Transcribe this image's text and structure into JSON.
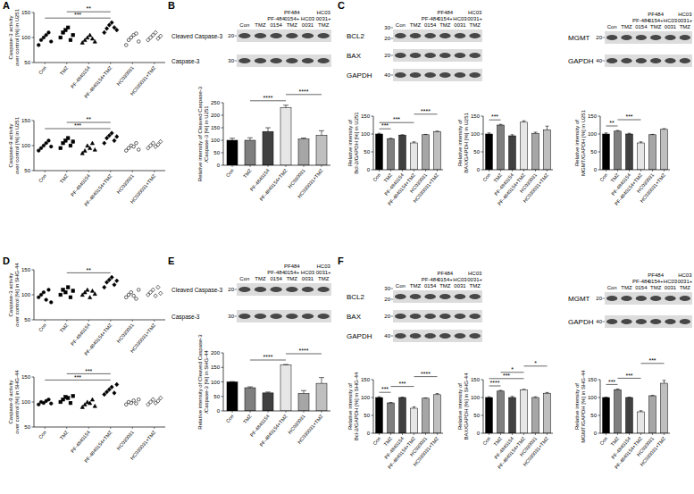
{
  "chart_data": [
    {
      "type": "scatter",
      "y_label": [
        "Caspase-3 activity",
        "over control [%] in U251"
      ],
      "categories": [
        "Con",
        "TMZ",
        "PF-4840154",
        "PF-4840154+TMZ",
        "HC030031",
        "HC030031+TMZ"
      ],
      "values": [
        [
          85,
          95,
          100,
          105,
          110,
          92
        ],
        [
          100,
          110,
          115,
          120,
          95,
          105
        ],
        [
          90,
          95,
          100,
          105,
          98,
          92
        ],
        [
          110,
          118,
          125,
          130,
          120,
          115
        ],
        [
          85,
          95,
          100,
          105,
          108,
          92
        ],
        [
          95,
          100,
          105,
          110,
          98,
          103
        ]
      ],
      "ylim": [
        50,
        150
      ],
      "yticks": [
        50,
        100,
        150
      ],
      "comparisons": [
        {
          "from": 0,
          "to": 3,
          "label": "***"
        },
        {
          "from": 1,
          "to": 3,
          "label": "**"
        }
      ]
    },
    {
      "type": "scatter",
      "y_label": [
        "Caspase-9 activity",
        "over control [%] in U251"
      ],
      "categories": [
        "Con",
        "TMZ",
        "PF-4840154",
        "PF-4840154+TMZ",
        "HC030031",
        "HC030031+TMZ"
      ],
      "values": [
        [
          90,
          95,
          100,
          105,
          110,
          98
        ],
        [
          95,
          105,
          110,
          115,
          100,
          108
        ],
        [
          85,
          90,
          100,
          95,
          105,
          92
        ],
        [
          105,
          115,
          120,
          125,
          110,
          118
        ],
        [
          90,
          95,
          100,
          98,
          105,
          92
        ],
        [
          95,
          100,
          105,
          98,
          102,
          108
        ]
      ],
      "ylim": [
        50,
        150
      ],
      "yticks": [
        50,
        100,
        150
      ],
      "comparisons": [
        {
          "from": 0,
          "to": 3,
          "label": "***"
        },
        {
          "from": 1,
          "to": 3,
          "label": "**"
        }
      ]
    },
    {
      "type": "bar",
      "y_label": [
        "Relative intensity of Cleaved Caspase-3",
        "/Caspase-3 [%] in U251"
      ],
      "categories": [
        "Con",
        "TMZ",
        "PF-4840154",
        "PF-4840154+TMZ",
        "HC030031",
        "HC030031+TMZ"
      ],
      "values": [
        100,
        100,
        135,
        230,
        105,
        120
      ],
      "errors": [
        8,
        10,
        15,
        10,
        4,
        18
      ],
      "colors": [
        "#000000",
        "#7f7f7f",
        "#404040",
        "#e6e6e6",
        "#a6a6a6",
        "#bfbfbf"
      ],
      "ylim": [
        0,
        250
      ],
      "yticks": [
        0,
        50,
        100,
        150,
        200,
        250
      ],
      "comparisons": [
        {
          "from": 1,
          "to": 3,
          "label": "****"
        },
        {
          "from": 3,
          "to": 5,
          "label": "****"
        }
      ]
    },
    {
      "type": "bar",
      "y_label": [
        "Relative intensity of",
        "Bcl-2/GAPDH [%] in U251"
      ],
      "categories": [
        "Con",
        "TMZ",
        "PF-4840154",
        "PF-4840154+TMZ",
        "HC030031",
        "HC030031+TMZ"
      ],
      "values": [
        100,
        87,
        97,
        75,
        98,
        107
      ],
      "errors": [
        2,
        1,
        1,
        3,
        1,
        1
      ],
      "colors": [
        "#000000",
        "#7f7f7f",
        "#404040",
        "#e6e6e6",
        "#a6a6a6",
        "#bfbfbf"
      ],
      "ylim": [
        0,
        150
      ],
      "yticks": [
        0,
        50,
        100,
        150
      ],
      "comparisons": [
        {
          "from": 0,
          "to": 1,
          "label": "***"
        },
        {
          "from": 0,
          "to": 3,
          "label": "***"
        },
        {
          "from": 3,
          "to": 5,
          "label": "****"
        }
      ]
    },
    {
      "type": "bar",
      "y_label": [
        "Relative intensity of",
        "BAX/GAPDH [%] in U251"
      ],
      "categories": [
        "Con",
        "TMZ",
        "PF-4840154",
        "PF-4840154+TMZ",
        "HC030031",
        "HC030031+TMZ"
      ],
      "values": [
        100,
        125,
        95,
        133,
        102,
        112
      ],
      "errors": [
        3,
        2,
        3,
        4,
        3,
        10
      ],
      "colors": [
        "#000000",
        "#7f7f7f",
        "#404040",
        "#e6e6e6",
        "#a6a6a6",
        "#bfbfbf"
      ],
      "ylim": [
        0,
        150
      ],
      "yticks": [
        0,
        50,
        100,
        150
      ],
      "comparisons": [
        {
          "from": 0,
          "to": 1,
          "label": "***"
        }
      ]
    },
    {
      "type": "bar",
      "y_label": [
        "Relative intensity of",
        "MGMT/GAPDH [%] in U251"
      ],
      "categories": [
        "Con",
        "TMZ",
        "PF-4840154",
        "PF-4840154+TMZ",
        "HC030031",
        "HC030031+TMZ"
      ],
      "values": [
        100,
        108,
        100,
        75,
        98,
        113
      ],
      "errors": [
        3,
        2,
        2,
        3,
        1,
        2
      ],
      "colors": [
        "#000000",
        "#7f7f7f",
        "#404040",
        "#e6e6e6",
        "#a6a6a6",
        "#bfbfbf"
      ],
      "ylim": [
        0,
        150
      ],
      "yticks": [
        0,
        50,
        100,
        150
      ],
      "comparisons": [
        {
          "from": 0,
          "to": 1,
          "label": "**"
        },
        {
          "from": 1,
          "to": 3,
          "label": "***"
        }
      ]
    },
    {
      "type": "scatter",
      "y_label": [
        "Caspase-3 activity",
        "over control [%] in SHG-44"
      ],
      "categories": [
        "Con",
        "TMZ",
        "PF-4840154",
        "PF-4840154+TMZ",
        "HC030031",
        "HC030031+TMZ"
      ],
      "values": [
        [
          95,
          100,
          105,
          90,
          110,
          85
        ],
        [
          100,
          110,
          105,
          115,
          95,
          108
        ],
        [
          100,
          105,
          110,
          95,
          108,
          102
        ],
        [
          115,
          125,
          130,
          135,
          120,
          128
        ],
        [
          95,
          100,
          105,
          98,
          92,
          110
        ],
        [
          100,
          105,
          110,
          98,
          115,
          103
        ]
      ],
      "ylim": [
        50,
        150
      ],
      "yticks": [
        50,
        100,
        150
      ],
      "comparisons": [
        {
          "from": 1,
          "to": 3,
          "label": "**"
        }
      ]
    },
    {
      "type": "scatter",
      "y_label": [
        "Caspase-9 activity",
        "over control [%] in SHG-44"
      ],
      "categories": [
        "Con",
        "TMZ",
        "PF-4840154",
        "PF-4840154+TMZ",
        "HC030031",
        "HC030031+TMZ"
      ],
      "values": [
        [
          95,
          100,
          98,
          102,
          105,
          97
        ],
        [
          100,
          105,
          110,
          108,
          98,
          112
        ],
        [
          90,
          95,
          100,
          98,
          105,
          92
        ],
        [
          115,
          120,
          125,
          130,
          118,
          135
        ],
        [
          95,
          100,
          98,
          103,
          97,
          105
        ],
        [
          95,
          100,
          105,
          98,
          102,
          108
        ]
      ],
      "ylim": [
        50,
        150
      ],
      "yticks": [
        50,
        100,
        150
      ],
      "comparisons": [
        {
          "from": 0,
          "to": 3,
          "label": "***"
        },
        {
          "from": 1,
          "to": 3,
          "label": "***"
        }
      ]
    },
    {
      "type": "bar",
      "y_label": [
        "Relative intensity of Cleaved Caspase-3",
        "/Caspase-3 [%] in SHG-44"
      ],
      "categories": [
        "Con",
        "TMZ",
        "PF-4840154",
        "PF-4840154+TMZ",
        "HC030031",
        "HC030031+TMZ"
      ],
      "values": [
        100,
        80,
        62,
        158,
        60,
        95
      ],
      "errors": [
        1,
        3,
        3,
        2,
        10,
        20
      ],
      "colors": [
        "#000000",
        "#7f7f7f",
        "#404040",
        "#e6e6e6",
        "#a6a6a6",
        "#bfbfbf"
      ],
      "ylim": [
        0,
        200
      ],
      "yticks": [
        0,
        50,
        100,
        150,
        200
      ],
      "comparisons": [
        {
          "from": 1,
          "to": 3,
          "label": "****"
        },
        {
          "from": 3,
          "to": 5,
          "label": "****"
        }
      ]
    },
    {
      "type": "bar",
      "y_label": [
        "Relative intensity of",
        "Bcl-2/GAPDH [%] in SHG-44"
      ],
      "categories": [
        "Con",
        "TMZ",
        "PF-4840154",
        "PF-4840154+TMZ",
        "HC030031",
        "HC030031+TMZ"
      ],
      "values": [
        100,
        85,
        100,
        70,
        98,
        108
      ],
      "errors": [
        2,
        1,
        1,
        4,
        1,
        3
      ],
      "colors": [
        "#000000",
        "#7f7f7f",
        "#404040",
        "#e6e6e6",
        "#a6a6a6",
        "#bfbfbf"
      ],
      "ylim": [
        0,
        150
      ],
      "yticks": [
        0,
        50,
        100,
        150
      ],
      "comparisons": [
        {
          "from": 0,
          "to": 1,
          "label": "***"
        },
        {
          "from": 1,
          "to": 3,
          "label": "***"
        },
        {
          "from": 3,
          "to": 5,
          "label": "****"
        }
      ]
    },
    {
      "type": "bar",
      "y_label": [
        "Relative intensity of",
        "BAX/GAPDH [%] in SHG-44"
      ],
      "categories": [
        "Con",
        "TMZ",
        "PF-4840154",
        "PF-4840154+TMZ",
        "HC030031",
        "HC030031+TMZ"
      ],
      "values": [
        100,
        118,
        100,
        122,
        100,
        112
      ],
      "errors": [
        2,
        2,
        3,
        1,
        2,
        2
      ],
      "colors": [
        "#000000",
        "#7f7f7f",
        "#404040",
        "#e6e6e6",
        "#a6a6a6",
        "#bfbfbf"
      ],
      "ylim": [
        0,
        150
      ],
      "yticks": [
        0,
        50,
        100,
        150
      ],
      "comparisons": [
        {
          "from": 0,
          "to": 1,
          "label": "****"
        },
        {
          "from": 0,
          "to": 3,
          "label": "***"
        },
        {
          "from": 1,
          "to": 3,
          "label": "*"
        },
        {
          "from": 3,
          "to": 5,
          "label": "*"
        }
      ]
    },
    {
      "type": "bar",
      "y_label": [
        "Relative intensity of",
        "MGMT/GAPDH [%] in SHG-44"
      ],
      "categories": [
        "Con",
        "TMZ",
        "PF-4840154",
        "PF-4840154+TMZ",
        "HC030031",
        "HC030031+TMZ"
      ],
      "values": [
        100,
        122,
        100,
        60,
        105,
        140
      ],
      "errors": [
        1,
        2,
        1,
        3,
        1,
        8
      ],
      "colors": [
        "#000000",
        "#7f7f7f",
        "#404040",
        "#e6e6e6",
        "#a6a6a6",
        "#bfbfbf"
      ],
      "ylim": [
        0,
        150
      ],
      "yticks": [
        0,
        50,
        100,
        150
      ],
      "comparisons": [
        {
          "from": 0,
          "to": 1,
          "label": "***"
        },
        {
          "from": 1,
          "to": 3,
          "label": "***"
        },
        {
          "from": 3,
          "to": 5,
          "label": "***"
        }
      ]
    }
  ],
  "panels": [
    "A",
    "B",
    "C",
    "D",
    "E",
    "F"
  ],
  "blots": [
    {
      "lanes": [
        [
          "Con"
        ],
        [
          "TMZ"
        ],
        [
          "PF-484",
          "0154"
        ],
        [
          "PF484",
          "0154+",
          "TMZ"
        ],
        [
          "HC03",
          "0031"
        ],
        [
          "HC03",
          "0031+",
          "TMZ"
        ]
      ],
      "rows": [
        {
          "label": "Cleaved Caspase-3",
          "markers": [
            20
          ]
        },
        {
          "label": "Caspase-3",
          "markers": [
            30
          ]
        }
      ]
    },
    {
      "lanes": [
        [
          "Con"
        ],
        [
          "TMZ"
        ],
        [
          "PF-484",
          "0154"
        ],
        [
          "PF484",
          "0154+",
          "TMZ"
        ],
        [
          "HC03",
          "0031"
        ],
        [
          "HC03",
          "0031+",
          "TMZ"
        ]
      ],
      "rows": [
        {
          "label": "BCL2",
          "markers": [
            30,
            20
          ]
        },
        {
          "label": "BAX",
          "markers": [
            20
          ]
        },
        {
          "label": "GAPDH",
          "markers": [
            40
          ]
        }
      ]
    },
    {
      "lanes": [
        [
          "Con"
        ],
        [
          "TMZ"
        ],
        [
          "PF-484",
          "0154"
        ],
        [
          "PF484",
          "0154+",
          "TMZ"
        ],
        [
          "HC03",
          "0031"
        ],
        [
          "HC03",
          "0031+",
          "TMZ"
        ]
      ],
      "rows": [
        {
          "label": "MGMT",
          "markers": [
            20
          ]
        },
        {
          "label": "GAPDH",
          "markers": [
            40
          ]
        }
      ]
    },
    {
      "lanes": [
        [
          "Con"
        ],
        [
          "TMZ"
        ],
        [
          "PF-484",
          "0154"
        ],
        [
          "PF484",
          "0154+",
          "TMZ"
        ],
        [
          "HC03",
          "0031"
        ],
        [
          "HC03",
          "0031+",
          "TMZ"
        ]
      ],
      "rows": [
        {
          "label": "Cleaved Caspase-3",
          "markers": [
            20
          ]
        },
        {
          "label": "Caspase-3",
          "markers": [
            30
          ]
        }
      ]
    },
    {
      "lanes": [
        [
          "Con"
        ],
        [
          "TMZ"
        ],
        [
          "PF-484",
          "0154"
        ],
        [
          "PF484",
          "0154+",
          "TMZ"
        ],
        [
          "HC03",
          "0031"
        ],
        [
          "HC03",
          "0031+",
          "TMZ"
        ]
      ],
      "rows": [
        {
          "label": "BCL2",
          "markers": [
            30,
            20
          ]
        },
        {
          "label": "BAX",
          "markers": [
            20
          ]
        },
        {
          "label": "GAPDH",
          "markers": [
            40
          ]
        }
      ]
    },
    {
      "lanes": [
        [
          "Con"
        ],
        [
          "TMZ"
        ],
        [
          "PF-484",
          "0154"
        ],
        [
          "PF484",
          "0154+",
          "TMZ"
        ],
        [
          "HC03",
          "0031"
        ],
        [
          "HC03",
          "0031+",
          "TMZ"
        ]
      ],
      "rows": [
        {
          "label": "MGMT",
          "markers": [
            20
          ]
        },
        {
          "label": "GAPDH",
          "markers": [
            40
          ]
        }
      ]
    }
  ]
}
